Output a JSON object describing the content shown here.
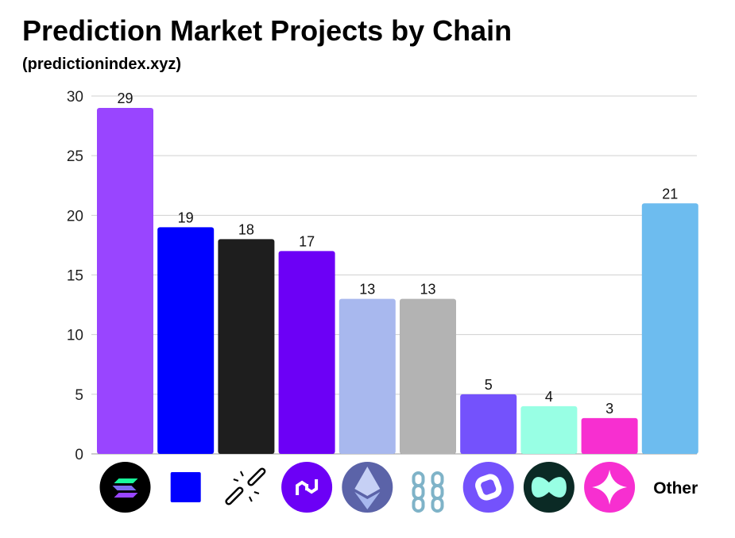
{
  "chart_data": {
    "type": "bar",
    "title": "Prediction Market Projects by Chain",
    "subtitle": "(predictionindex.xyz)",
    "categories": [
      "solana-logo",
      "base-logo",
      "broken-chain-link-icon",
      "polygon-logo",
      "ethereum-logo",
      "chain-links-icon",
      "purple-rounded-square-logo",
      "teal-infinity-logo",
      "pink-sparkle-logo",
      "Other"
    ],
    "category_labels": {
      "9": "Other"
    },
    "values": [
      29,
      19,
      18,
      17,
      13,
      13,
      5,
      4,
      3,
      21
    ],
    "colors": [
      "#9945FF",
      "#0000FF",
      "#1E1E1E",
      "#6C00F6",
      "#A8B8EE",
      "#B3B3B3",
      "#7452FC",
      "#98FFE4",
      "#F72FD0",
      "#6DBCEF"
    ],
    "yticks": [
      0,
      5,
      10,
      15,
      20,
      25,
      30
    ],
    "ylim": [
      0,
      30
    ],
    "xlabel": "",
    "ylabel": "",
    "grid": true
  }
}
